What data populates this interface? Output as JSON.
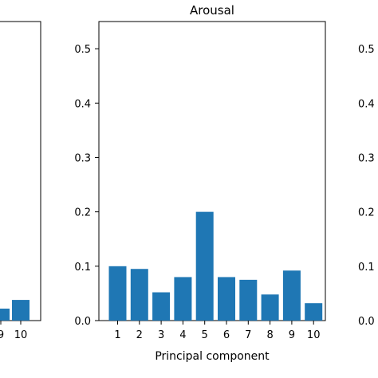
{
  "chart_data": [
    {
      "type": "bar",
      "title": "",
      "xlabel": "",
      "ylabel": "",
      "visible_categories": [
        "9",
        "10"
      ],
      "visible_values": [
        0.022,
        0.038
      ],
      "partial": true
    },
    {
      "type": "bar",
      "title": "Arousal",
      "xlabel": "Principal component",
      "ylabel": "",
      "categories": [
        "1",
        "2",
        "3",
        "4",
        "5",
        "6",
        "7",
        "8",
        "9",
        "10"
      ],
      "values": [
        0.1,
        0.095,
        0.052,
        0.08,
        0.2,
        0.08,
        0.075,
        0.048,
        0.092,
        0.032
      ],
      "ylim": [
        0,
        0.55
      ],
      "yticks": [
        "0.0",
        "0.1",
        "0.2",
        "0.3",
        "0.4",
        "0.5"
      ],
      "bar_color": "#1f77b4",
      "grid": false
    },
    {
      "type": "bar",
      "title": "",
      "partial": true,
      "yticks": [
        "0.0",
        "0.1",
        "0.2",
        "0.3",
        "0.4",
        "0.5"
      ]
    }
  ]
}
